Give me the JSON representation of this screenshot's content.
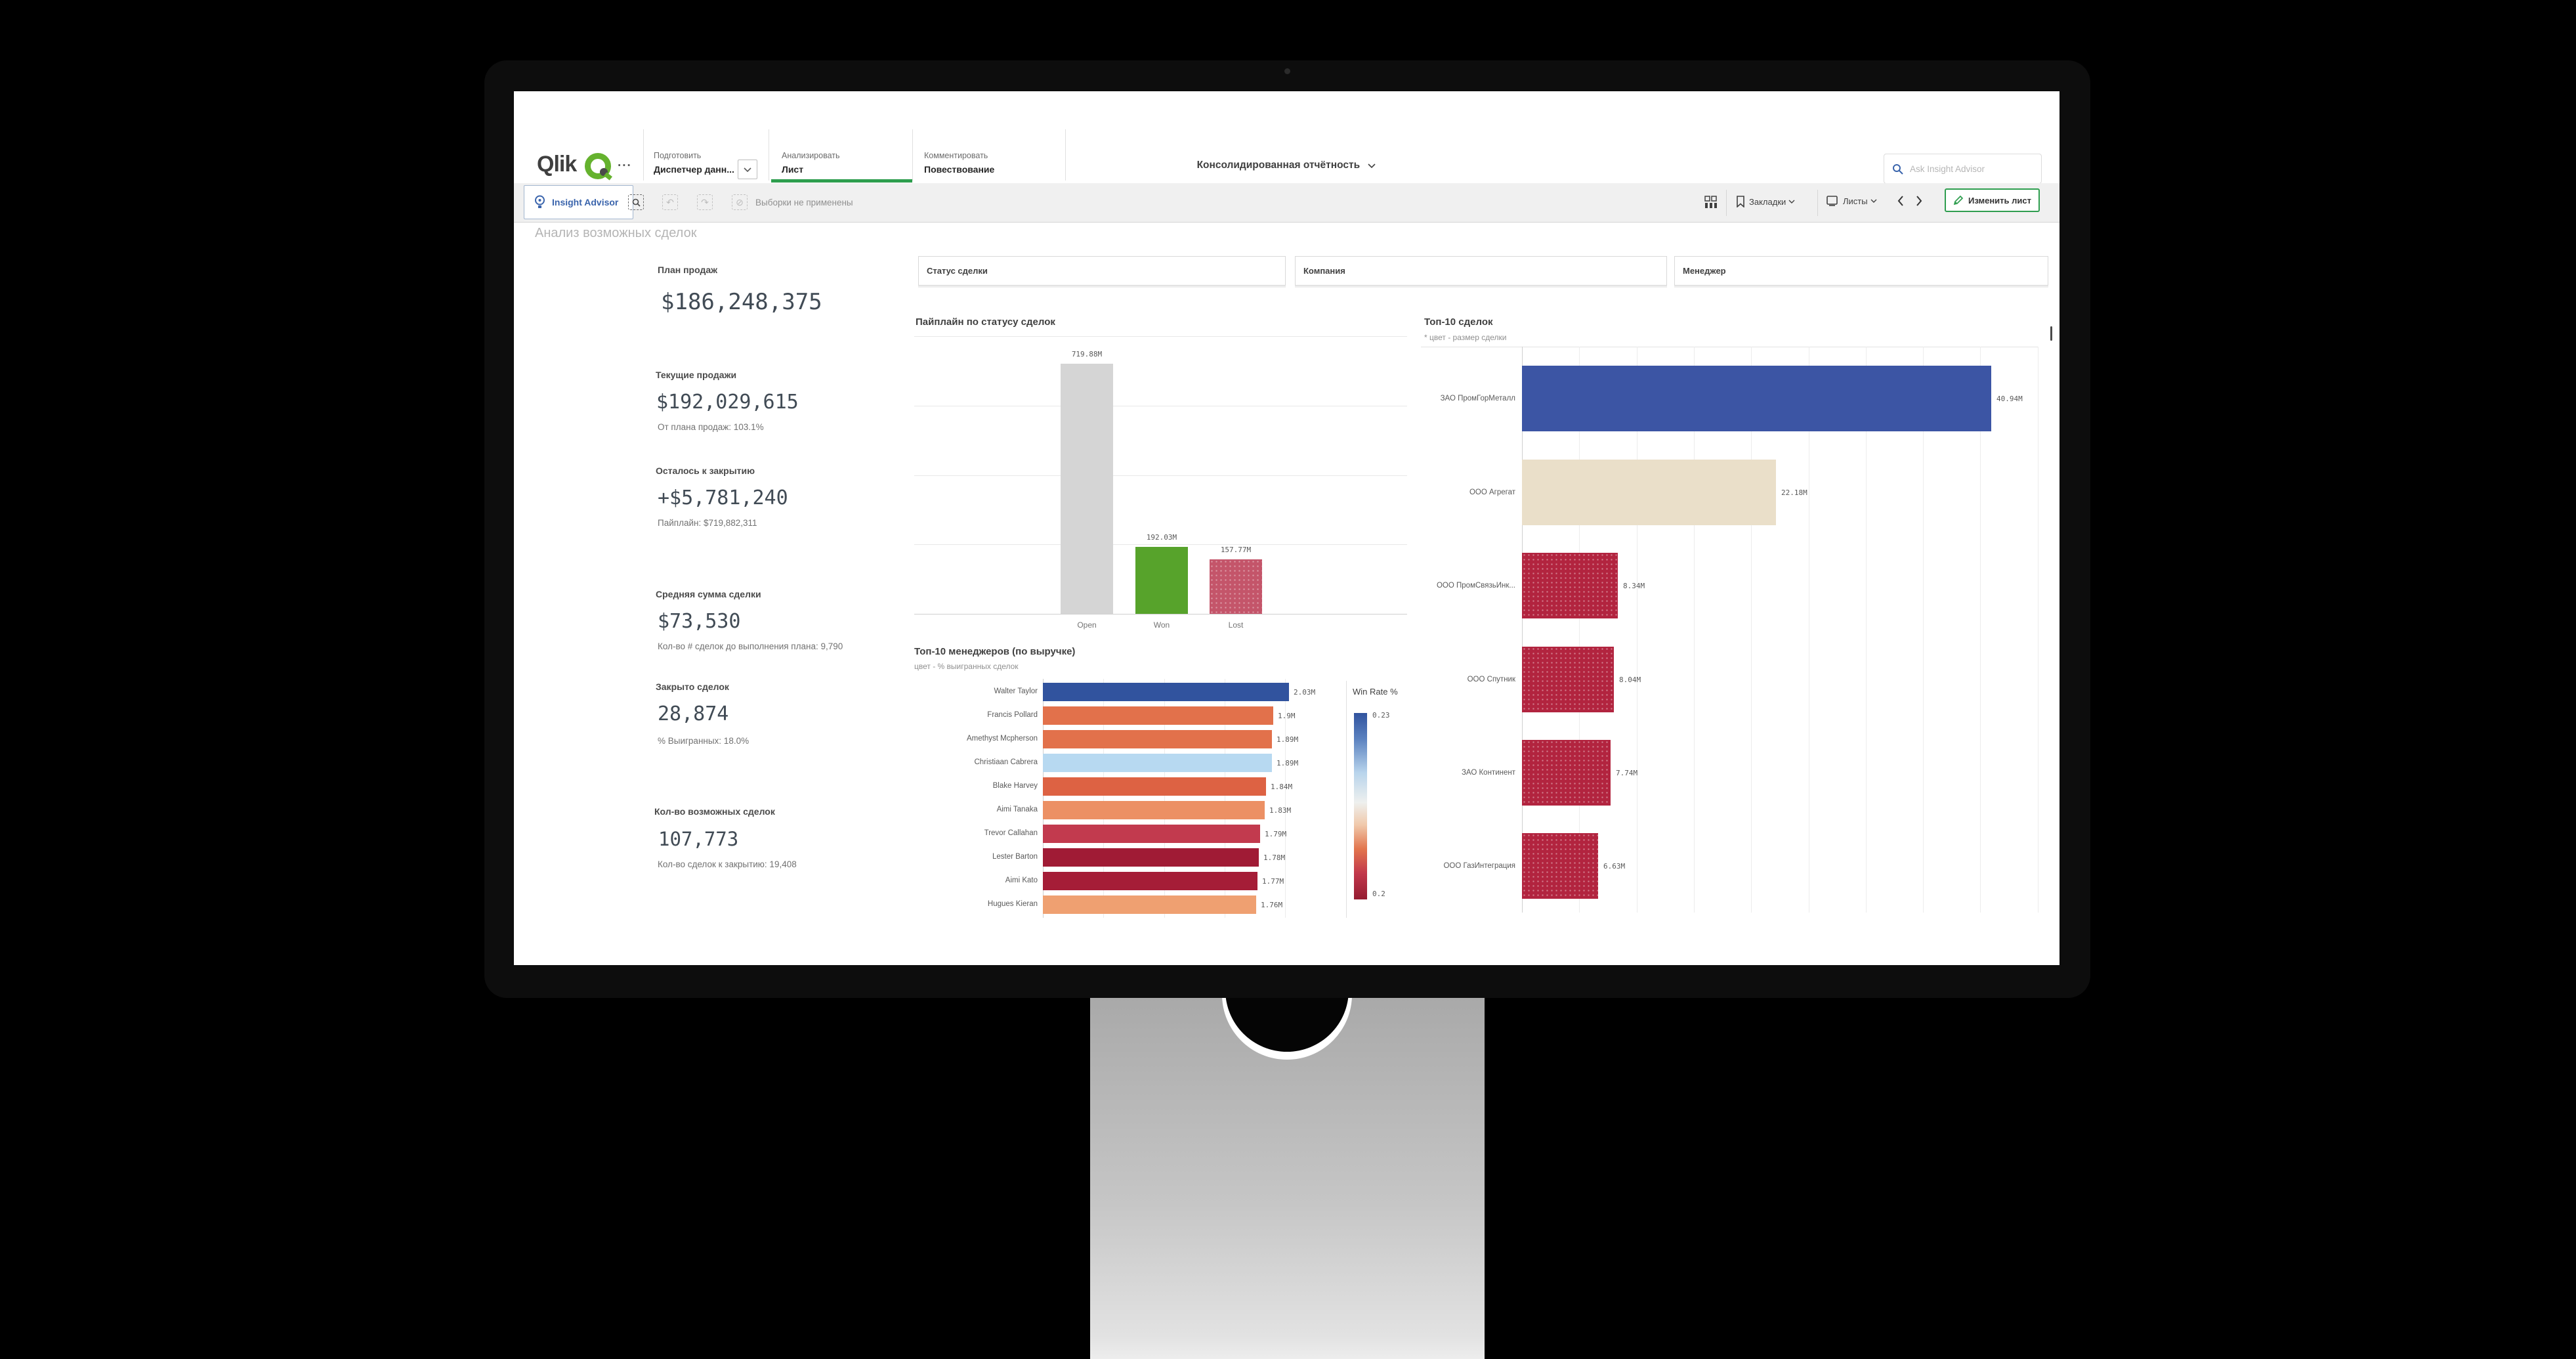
{
  "nav": {
    "logo": "Qlik",
    "logo_dots": "...",
    "tabs": [
      {
        "top": "Подготовить",
        "bottom": "Диспетчер данн..."
      },
      {
        "top": "Анализировать",
        "bottom": "Лист"
      },
      {
        "top": "Комментировать",
        "bottom": "Повествование"
      }
    ],
    "app_title": "Консолидированная отчётность",
    "search_placeholder": "Ask Insight Advisor"
  },
  "toolbar": {
    "insight_advisor": "Insight Advisor",
    "selection_icons": [
      "selection-search-icon",
      "undo-icon",
      "redo-icon",
      "clear-selections-icon"
    ],
    "selections_status": "Выборки не применены",
    "bookmarks_label": "Закладки",
    "sheets_label": "Листы",
    "edit_sheet_label": "Изменить лист",
    "accent_green": "#2f9e4f",
    "accent_blue": "#3a64ac"
  },
  "sheet": {
    "title": "Анализ возможных сделок",
    "filters": [
      "Статус сделки",
      "Компания",
      "Менеджер"
    ],
    "kpis": [
      {
        "label": "План продаж",
        "value": "$186,248,375",
        "sub": ""
      },
      {
        "label": "Текущие продажи",
        "value": "$192,029,615",
        "sub": "От плана продаж: 103.1%"
      },
      {
        "label": "Осталось к закрытию",
        "value": "+$5,781,240",
        "sub": "Пайплайн: $719,882,311"
      },
      {
        "label": "Средняя сумма сделки",
        "value": "$73,530",
        "sub": "Кол-во # сделок до выполнения плана: 9,790"
      },
      {
        "label": "Закрыто сделок",
        "value": "28,874",
        "sub": "% Выигранных: 18.0%"
      },
      {
        "label": "Кол-во возможных сделок",
        "value": "107,773",
        "sub": "Кол-во сделок к закрытию: 19,408"
      }
    ]
  },
  "chart_data": [
    {
      "type": "bar",
      "title": "Пайплайн по статусу сделок",
      "categories": [
        "Open",
        "Won",
        "Lost"
      ],
      "values": [
        719.88,
        192.03,
        157.77
      ],
      "value_labels": [
        "719.88M",
        "192.03M",
        "157.77M"
      ],
      "colors": [
        "#d5d5d5",
        "#57a32b",
        "#c4556a"
      ],
      "patterned": [
        false,
        false,
        true
      ],
      "ylim": [
        0,
        800
      ],
      "grid_step": 200,
      "grid": "horizontal"
    },
    {
      "type": "bar-horizontal",
      "title": "Топ-10 менеджеров (по выручке)",
      "subtitle": "цвет - % выигранных сделок",
      "categories": [
        "Walter Taylor",
        "Francis Pollard",
        "Amethyst Mcpherson",
        "Christiaan Cabrera",
        "Blake Harvey",
        "Aimi Tanaka",
        "Trevor Callahan",
        "Lester Barton",
        "Aimi Kato",
        "Hugues Kieran"
      ],
      "values": [
        2.03,
        1.9,
        1.89,
        1.89,
        1.84,
        1.83,
        1.79,
        1.78,
        1.77,
        1.76
      ],
      "value_labels": [
        "2.03M",
        "1.9M",
        "1.89M",
        "1.89M",
        "1.84M",
        "1.83M",
        "1.79M",
        "1.78M",
        "1.77M",
        "1.76M"
      ],
      "colors": [
        "#31539e",
        "#e2714b",
        "#e2714b",
        "#b7d9f1",
        "#dd6243",
        "#ec9064",
        "#c23a4e",
        "#a01b35",
        "#a51d37",
        "#efa071"
      ],
      "patterned": [
        false,
        false,
        false,
        false,
        false,
        false,
        false,
        false,
        false,
        false
      ],
      "xlim": [
        0,
        2.2
      ],
      "grid_step": 0.5,
      "legend": {
        "title": "Win Rate %",
        "max_label": "0.23",
        "min_label": "0.2"
      }
    },
    {
      "type": "bar-horizontal",
      "title": "Топ-10 сделок",
      "subtitle": "* цвет - размер сделки",
      "categories": [
        "ЗАО ПромГорМеталл",
        "ООО Агрегат",
        "ООО ПромСвязьИнк...",
        "ООО Спутник",
        "ЗАО Континент",
        "ООО ГазИнтеграция"
      ],
      "values": [
        40.94,
        22.18,
        8.34,
        8.04,
        7.74,
        6.63
      ],
      "value_labels": [
        "40.94M",
        "22.18M",
        "8.34M",
        "8.04M",
        "7.74M",
        "6.63M"
      ],
      "colors": [
        "#3c55a4",
        "#eadfc9",
        "#b2243f",
        "#b2243f",
        "#b2243f",
        "#b2243f"
      ],
      "patterned": [
        false,
        false,
        true,
        true,
        true,
        true
      ],
      "xlim": [
        0,
        45
      ],
      "grid_step": 5
    }
  ]
}
